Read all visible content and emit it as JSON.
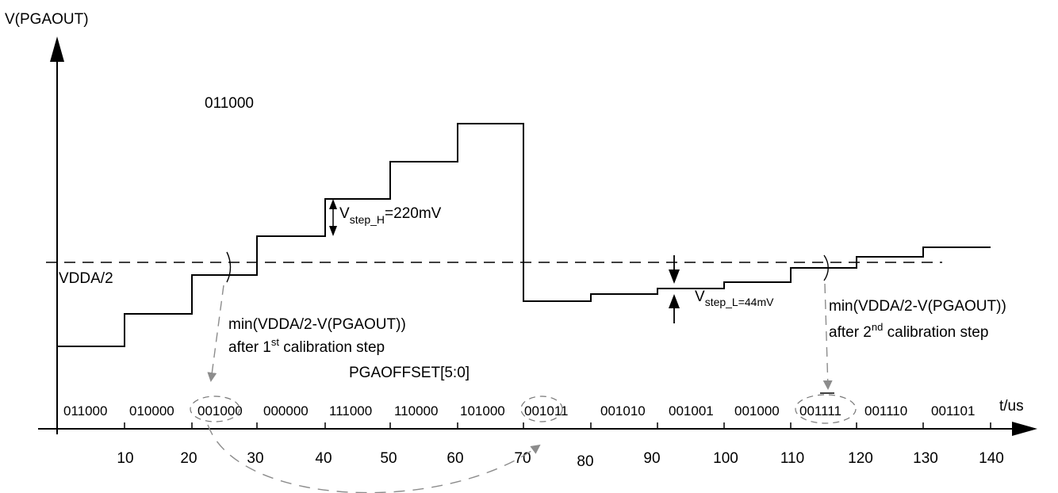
{
  "axes": {
    "y_label": "V(PGAOUT)",
    "x_label": "t/us",
    "x_ticks": [
      "10",
      "20",
      "30",
      "40",
      "50",
      "60",
      "70",
      "80",
      "90",
      "100",
      "110",
      "120",
      "130",
      "140"
    ]
  },
  "reference": {
    "label": "VDDA/2"
  },
  "top_code_label": "011000",
  "register_label": "PGAOFFSET[5:0]",
  "codes": [
    "011000",
    "010000",
    "001000",
    "000000",
    "111000",
    "110000",
    "101000",
    "001011",
    "001010",
    "001001",
    "001000",
    "001111",
    "001110",
    "001101"
  ],
  "step_high": {
    "symbol": "V",
    "subscript": "step_H",
    "value": "=220mV"
  },
  "step_low": {
    "symbol": "V",
    "subscript": "step_L=44mV"
  },
  "note_first": {
    "line1": "min(VDDA/2-V(PGAOUT))",
    "line2_prefix": "after 1",
    "line2_sup": "st",
    "line2_suffix": " calibration step"
  },
  "note_second": {
    "line1": "min(VDDA/2-V(PGAOUT))",
    "line2_prefix": "after 2",
    "line2_sup": "nd",
    "line2_suffix": " calibration step"
  },
  "colors": {
    "line": "#000000",
    "arrow": "#8c8c8c"
  }
}
